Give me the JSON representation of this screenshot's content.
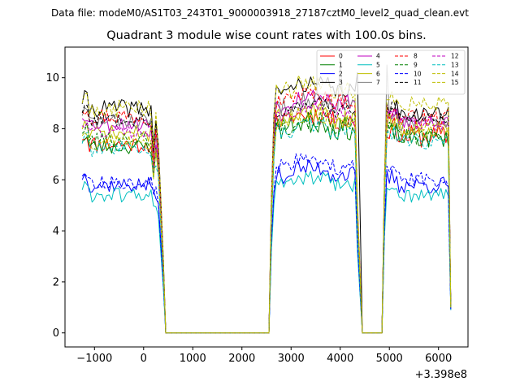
{
  "chart_data": {
    "type": "line",
    "suptitle": "Data file: modeM0/AS1T03_243T01_9000003918_27187cztM0_level2_quad_clean.evt",
    "title": "Quadrant 3 module wise count rates with 100.0s bins.",
    "xlabel": "",
    "ylabel": "",
    "x_offset_label": "+3.398e8",
    "xlim": [
      -1600,
      6600
    ],
    "ylim": [
      -0.55,
      11.2
    ],
    "xticks": [
      -1000,
      0,
      1000,
      2000,
      3000,
      4000,
      5000,
      6000
    ],
    "xtick_labels": [
      "−1000",
      "0",
      "1000",
      "2000",
      "3000",
      "4000",
      "5000",
      "6000"
    ],
    "yticks": [
      0,
      2,
      4,
      6,
      8,
      10
    ],
    "ytick_labels": [
      "0",
      "2",
      "4",
      "6",
      "8",
      "10"
    ],
    "grid": false,
    "legend_position": "top-right",
    "legend_columns": 4,
    "x_segments": [
      {
        "start": -1250,
        "end": 250,
        "step": 50
      },
      {
        "start": 300,
        "end": 400,
        "step": 50
      },
      {
        "start": 450,
        "end": 2550,
        "step": 2100
      },
      {
        "start": 2600,
        "end": 2650,
        "step": 50
      },
      {
        "start": 2700,
        "end": 4300,
        "step": 50
      },
      {
        "start": 4350,
        "end": 4350,
        "step": 50
      },
      {
        "start": 4450,
        "end": 4850,
        "step": 400
      },
      {
        "start": 4900,
        "end": 4950,
        "step": 50
      },
      {
        "start": 5000,
        "end": 6200,
        "step": 50
      },
      {
        "start": 6250,
        "end": 6250,
        "step": 50
      }
    ],
    "series": [
      {
        "name": "0",
        "color": "#ff0000",
        "dash": "solid",
        "b1": 7.4,
        "a1": 0.35,
        "fall": 5.4,
        "b2": 8.3,
        "a2": 0.4,
        "b3": 7.7,
        "a3": 0.45,
        "end": 1.0,
        "seed": 11
      },
      {
        "name": "1",
        "color": "#008000",
        "dash": "solid",
        "b1": 7.3,
        "a1": 0.3,
        "fall": 5.3,
        "b2": 8.0,
        "a2": 0.45,
        "b3": 7.6,
        "a3": 0.35,
        "end": 1.0,
        "seed": 23
      },
      {
        "name": "2",
        "color": "#0000ff",
        "dash": "solid",
        "b1": 5.8,
        "a1": 0.3,
        "fall": 4.4,
        "b2": 6.2,
        "a2": 0.35,
        "b3": 5.8,
        "a3": 0.35,
        "end": 0.9,
        "seed": 37
      },
      {
        "name": "3",
        "color": "#000000",
        "dash": "solid",
        "b1": 8.8,
        "a1": 0.35,
        "fall": 6.5,
        "b2": 9.5,
        "a2": 0.3,
        "b3": 8.6,
        "a3": 0.3,
        "end": 1.05,
        "seed": 41
      },
      {
        "name": "4",
        "color": "#bf00bf",
        "dash": "solid",
        "b1": 8.2,
        "a1": 0.3,
        "fall": 6.0,
        "b2": 9.0,
        "a2": 0.35,
        "b3": 8.3,
        "a3": 0.3,
        "end": 1.0,
        "seed": 53
      },
      {
        "name": "5",
        "color": "#00bfbf",
        "dash": "solid",
        "b1": 5.4,
        "a1": 0.3,
        "fall": 3.9,
        "b2": 5.8,
        "a2": 0.3,
        "b3": 5.4,
        "a3": 0.3,
        "end": 0.9,
        "seed": 61
      },
      {
        "name": "6",
        "color": "#bfbf00",
        "dash": "solid",
        "b1": 7.8,
        "a1": 0.35,
        "fall": 5.6,
        "b2": 8.4,
        "a2": 0.4,
        "b3": 8.0,
        "a3": 0.35,
        "end": 1.0,
        "seed": 71
      },
      {
        "name": "7",
        "color": "#808080",
        "dash": "solid",
        "b1": 8.3,
        "a1": 0.3,
        "fall": 6.1,
        "b2": 8.9,
        "a2": 0.35,
        "b3": 8.2,
        "a3": 0.3,
        "end": 1.0,
        "seed": 83
      },
      {
        "name": "8",
        "color": "#ff0000",
        "dash": "dashed",
        "b1": 8.5,
        "a1": 0.35,
        "fall": 6.2,
        "b2": 9.1,
        "a2": 0.35,
        "b3": 8.4,
        "a3": 0.35,
        "end": 1.0,
        "seed": 97
      },
      {
        "name": "9",
        "color": "#008000",
        "dash": "dashed",
        "b1": 7.6,
        "a1": 0.3,
        "fall": 5.5,
        "b2": 8.1,
        "a2": 0.35,
        "b3": 7.7,
        "a3": 0.3,
        "end": 1.0,
        "seed": 101
      },
      {
        "name": "10",
        "color": "#0000ff",
        "dash": "dashed",
        "b1": 5.9,
        "a1": 0.25,
        "fall": 4.3,
        "b2": 6.5,
        "a2": 0.3,
        "b3": 6.0,
        "a3": 0.3,
        "end": 0.95,
        "seed": 113
      },
      {
        "name": "11",
        "color": "#000000",
        "dash": "dashed",
        "b1": 8.4,
        "a1": 0.3,
        "fall": 6.2,
        "b2": 8.7,
        "a2": 0.3,
        "b3": 8.5,
        "a3": 0.3,
        "end": 1.0,
        "seed": 127
      },
      {
        "name": "12",
        "color": "#bf00bf",
        "dash": "dashed",
        "b1": 7.9,
        "a1": 0.3,
        "fall": 5.7,
        "b2": 8.5,
        "a2": 0.3,
        "b3": 8.2,
        "a3": 0.3,
        "end": 1.0,
        "seed": 131
      },
      {
        "name": "13",
        "color": "#00bfbf",
        "dash": "dashed",
        "b1": 7.2,
        "a1": 0.3,
        "fall": 5.2,
        "b2": 7.9,
        "a2": 0.3,
        "b3": 7.5,
        "a3": 0.3,
        "end": 1.0,
        "seed": 139
      },
      {
        "name": "14",
        "color": "#bfbf00",
        "dash": "dashed",
        "b1": 8.8,
        "a1": 0.35,
        "fall": 6.6,
        "b2": 9.5,
        "a2": 0.35,
        "b3": 9.0,
        "a3": 0.35,
        "end": 1.0,
        "seed": 149
      },
      {
        "name": "15",
        "color": "#bfbf00",
        "dash": "dashed",
        "b1": 7.5,
        "a1": 0.3,
        "fall": 5.4,
        "b2": 8.3,
        "a2": 0.35,
        "b3": 8.0,
        "a3": 0.3,
        "end": 1.0,
        "seed": 157
      }
    ],
    "spikes": [
      {
        "series": "3",
        "x": 4350,
        "y": 10.2
      },
      {
        "series": "7",
        "x": 4000,
        "y": 10.7
      },
      {
        "series": "7",
        "x": 4950,
        "y": 10.5
      }
    ]
  }
}
